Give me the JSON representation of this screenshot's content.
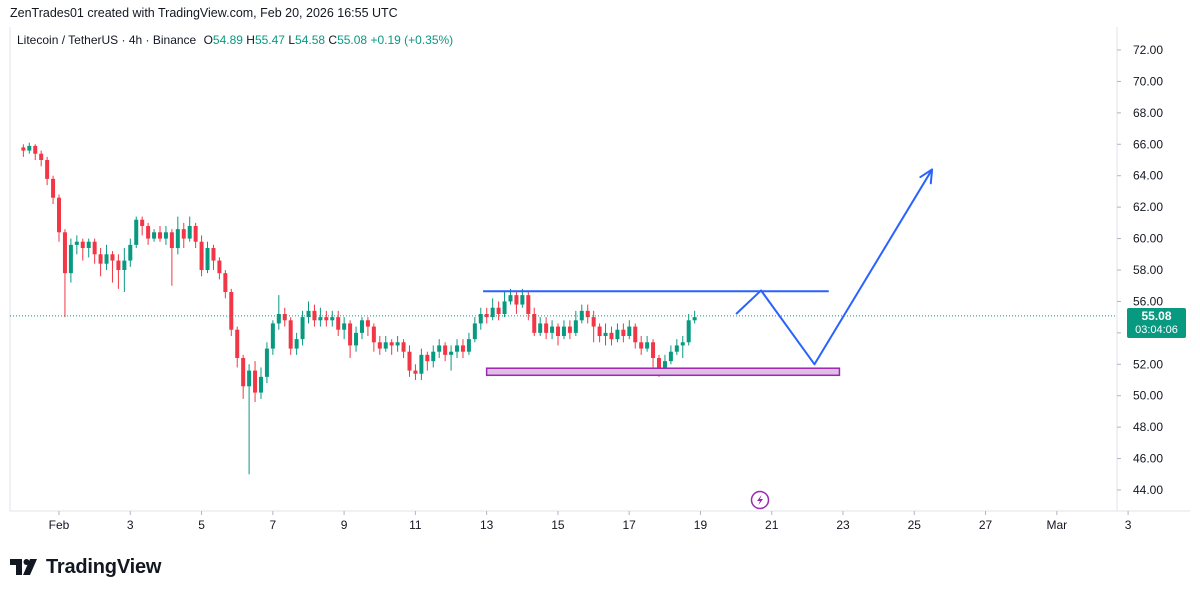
{
  "header": {
    "attribution": "ZenTrades01 created with TradingView.com, Feb 20, 2026 16:55 UTC"
  },
  "legend": {
    "symbol": "Litecoin / TetherUS · 4h · Binance",
    "o_label": "O",
    "o_value": "54.89",
    "h_label": "H",
    "h_value": "55.47",
    "l_label": "L",
    "l_value": "54.58",
    "c_label": "C",
    "c_value": "55.08",
    "change": "+0.19 (+0.35%)"
  },
  "last_price": {
    "price": "55.08",
    "countdown": "03:04:06"
  },
  "brand": {
    "name": "TradingView"
  },
  "colors": {
    "up": "#089981",
    "down": "#f23645",
    "drawing": "#2962ff",
    "zone_fill": "#e1bee7",
    "zone_border": "#9c27b0"
  },
  "chart_data": {
    "type": "candlestick",
    "interval": "4h",
    "y_ticks": [
      "72.00",
      "70.00",
      "68.00",
      "66.00",
      "64.00",
      "62.00",
      "60.00",
      "58.00",
      "56.00",
      "54.00",
      "52.00",
      "50.00",
      "48.00",
      "46.00",
      "44.00"
    ],
    "ylim": [
      42.5,
      74.5
    ],
    "x_ticks": [
      {
        "label": "Feb",
        "day": 1
      },
      {
        "label": "3",
        "day": 3
      },
      {
        "label": "5",
        "day": 5
      },
      {
        "label": "7",
        "day": 7
      },
      {
        "label": "9",
        "day": 9
      },
      {
        "label": "11",
        "day": 11
      },
      {
        "label": "13",
        "day": 13
      },
      {
        "label": "15",
        "day": 15
      },
      {
        "label": "17",
        "day": 17
      },
      {
        "label": "19",
        "day": 19
      },
      {
        "label": "21",
        "day": 21
      },
      {
        "label": "23",
        "day": 23
      },
      {
        "label": "25",
        "day": 25
      },
      {
        "label": "27",
        "day": 27
      },
      {
        "label": "Mar",
        "day": 29
      },
      {
        "label": "3",
        "day": 31
      }
    ],
    "xlim_days": [
      0.0,
      31.6
    ],
    "candles_start_day": 0.0,
    "candle_step_days": 0.1667,
    "candles": [
      [
        65.8,
        65.6,
        66.0,
        65.2
      ],
      [
        65.6,
        65.9,
        66.1,
        65.4
      ],
      [
        65.9,
        65.4,
        66.0,
        65.0
      ],
      [
        65.4,
        65.0,
        65.6,
        64.6
      ],
      [
        65.0,
        63.8,
        65.2,
        63.4
      ],
      [
        63.8,
        62.6,
        64.0,
        62.2
      ],
      [
        62.6,
        60.4,
        62.8,
        59.8
      ],
      [
        60.4,
        57.8,
        60.6,
        55.0
      ],
      [
        57.8,
        59.6,
        60.0,
        57.2
      ],
      [
        59.6,
        59.8,
        60.2,
        59.0
      ],
      [
        59.8,
        59.4,
        60.0,
        58.6
      ],
      [
        59.4,
        59.8,
        60.0,
        58.8
      ],
      [
        59.8,
        59.0,
        60.0,
        58.4
      ],
      [
        59.0,
        58.4,
        59.4,
        57.6
      ],
      [
        58.4,
        59.0,
        59.6,
        58.0
      ],
      [
        59.0,
        58.6,
        59.2,
        57.2
      ],
      [
        58.6,
        58.0,
        59.0,
        56.8
      ],
      [
        58.0,
        58.6,
        59.4,
        56.6
      ],
      [
        58.6,
        59.6,
        60.0,
        58.2
      ],
      [
        59.6,
        61.2,
        61.4,
        59.4
      ],
      [
        61.2,
        60.8,
        61.4,
        60.2
      ],
      [
        60.8,
        60.0,
        61.0,
        59.6
      ],
      [
        60.0,
        60.4,
        60.6,
        59.8
      ],
      [
        60.4,
        60.0,
        60.8,
        59.8
      ],
      [
        60.0,
        60.4,
        60.8,
        59.6
      ],
      [
        60.4,
        59.4,
        60.6,
        57.0
      ],
      [
        59.4,
        60.6,
        61.4,
        59.0
      ],
      [
        60.6,
        60.0,
        61.0,
        59.4
      ],
      [
        60.0,
        60.8,
        61.4,
        59.8
      ],
      [
        60.8,
        59.8,
        61.0,
        59.4
      ],
      [
        59.8,
        58.0,
        60.2,
        57.6
      ],
      [
        58.0,
        59.4,
        59.8,
        57.8
      ],
      [
        59.4,
        58.6,
        59.6,
        58.0
      ],
      [
        58.6,
        57.8,
        58.8,
        57.4
      ],
      [
        57.8,
        56.6,
        58.0,
        56.2
      ],
      [
        56.6,
        54.2,
        56.8,
        53.8
      ],
      [
        54.2,
        52.4,
        54.4,
        51.8
      ],
      [
        52.4,
        50.6,
        52.6,
        49.8
      ],
      [
        50.6,
        51.6,
        52.0,
        45.0
      ],
      [
        51.6,
        50.2,
        52.2,
        49.6
      ],
      [
        50.2,
        51.2,
        51.8,
        49.8
      ],
      [
        51.2,
        53.0,
        53.4,
        50.8
      ],
      [
        53.0,
        54.6,
        54.8,
        52.6
      ],
      [
        54.6,
        55.2,
        56.4,
        54.2
      ],
      [
        55.2,
        54.8,
        55.6,
        54.4
      ],
      [
        54.8,
        53.0,
        55.0,
        52.6
      ],
      [
        53.0,
        53.6,
        54.0,
        52.6
      ],
      [
        53.6,
        55.0,
        55.4,
        53.2
      ],
      [
        55.0,
        55.4,
        56.0,
        54.6
      ],
      [
        55.4,
        54.8,
        55.8,
        54.4
      ],
      [
        54.8,
        55.0,
        55.6,
        54.4
      ],
      [
        55.0,
        54.8,
        55.4,
        54.4
      ],
      [
        54.8,
        55.0,
        55.4,
        54.4
      ],
      [
        55.0,
        54.2,
        55.4,
        53.8
      ],
      [
        54.2,
        54.6,
        55.0,
        53.6
      ],
      [
        54.6,
        53.2,
        54.8,
        52.4
      ],
      [
        53.2,
        54.0,
        54.4,
        52.8
      ],
      [
        54.0,
        54.8,
        55.0,
        53.6
      ],
      [
        54.8,
        54.4,
        55.0,
        53.8
      ],
      [
        54.4,
        53.4,
        54.6,
        52.8
      ],
      [
        53.4,
        53.0,
        53.8,
        52.6
      ],
      [
        53.0,
        53.4,
        53.8,
        52.8
      ],
      [
        53.4,
        53.2,
        53.6,
        52.6
      ],
      [
        53.2,
        53.4,
        53.8,
        52.8
      ],
      [
        53.4,
        52.8,
        53.6,
        52.4
      ],
      [
        52.8,
        51.6,
        53.2,
        51.2
      ],
      [
        51.6,
        51.4,
        52.0,
        51.0
      ],
      [
        51.4,
        52.6,
        53.0,
        51.0
      ],
      [
        52.6,
        52.2,
        52.8,
        51.6
      ],
      [
        52.2,
        52.8,
        53.2,
        51.8
      ],
      [
        52.8,
        53.2,
        53.6,
        52.4
      ],
      [
        53.2,
        52.6,
        53.4,
        52.2
      ],
      [
        52.6,
        52.8,
        53.2,
        51.6
      ],
      [
        52.8,
        53.2,
        53.6,
        52.4
      ],
      [
        53.2,
        52.8,
        53.6,
        52.4
      ],
      [
        52.8,
        53.6,
        54.0,
        52.6
      ],
      [
        53.6,
        54.6,
        55.0,
        53.4
      ],
      [
        54.6,
        55.2,
        55.6,
        54.2
      ],
      [
        55.2,
        55.0,
        55.6,
        54.6
      ],
      [
        55.0,
        55.6,
        56.2,
        54.8
      ],
      [
        55.6,
        55.2,
        56.0,
        54.8
      ],
      [
        55.2,
        56.0,
        56.6,
        55.0
      ],
      [
        56.0,
        56.4,
        56.8,
        55.8
      ],
      [
        56.4,
        55.8,
        56.6,
        55.2
      ],
      [
        55.8,
        56.4,
        56.8,
        55.6
      ],
      [
        56.4,
        55.2,
        56.6,
        54.8
      ],
      [
        55.2,
        54.0,
        55.6,
        53.8
      ],
      [
        54.0,
        54.6,
        55.0,
        53.8
      ],
      [
        54.6,
        54.0,
        55.0,
        53.6
      ],
      [
        54.0,
        54.4,
        54.8,
        53.6
      ],
      [
        54.4,
        53.8,
        54.6,
        53.2
      ],
      [
        53.8,
        54.4,
        54.8,
        53.6
      ],
      [
        54.4,
        54.0,
        54.8,
        53.6
      ],
      [
        54.0,
        54.8,
        55.4,
        53.8
      ],
      [
        54.8,
        55.4,
        55.8,
        54.6
      ],
      [
        55.4,
        55.0,
        55.8,
        54.6
      ],
      [
        55.0,
        54.4,
        55.4,
        53.4
      ],
      [
        54.4,
        53.8,
        54.6,
        53.4
      ],
      [
        53.8,
        54.0,
        54.6,
        53.2
      ],
      [
        54.0,
        53.6,
        54.4,
        53.2
      ],
      [
        53.6,
        54.2,
        54.6,
        53.4
      ],
      [
        54.2,
        53.8,
        54.6,
        53.4
      ],
      [
        53.8,
        54.4,
        54.8,
        53.6
      ],
      [
        54.4,
        53.4,
        54.6,
        53.0
      ],
      [
        53.4,
        53.0,
        53.8,
        52.6
      ],
      [
        53.0,
        53.4,
        53.8,
        52.8
      ],
      [
        53.4,
        52.4,
        53.6,
        51.8
      ],
      [
        52.4,
        51.6,
        52.6,
        51.2
      ],
      [
        51.6,
        52.2,
        52.6,
        51.4
      ],
      [
        52.2,
        52.8,
        53.2,
        52.0
      ],
      [
        52.8,
        53.2,
        53.6,
        52.6
      ],
      [
        53.2,
        53.4,
        53.8,
        52.4
      ],
      [
        53.4,
        54.8,
        55.2,
        53.2
      ],
      [
        54.8,
        55.0,
        55.4,
        54.6
      ]
    ],
    "annotations": {
      "resistance_line": {
        "day_start": 12.9,
        "day_end": 22.6,
        "price": 56.65
      },
      "support_zone": {
        "day_start": 13.0,
        "day_end": 22.9,
        "price_low": 51.3,
        "price_high": 51.75
      },
      "projection_path": [
        {
          "day": 20.0,
          "price": 55.2
        },
        {
          "day": 20.7,
          "price": 56.7
        },
        {
          "day": 22.2,
          "price": 52.0
        },
        {
          "day": 25.5,
          "price": 64.4
        }
      ]
    }
  }
}
